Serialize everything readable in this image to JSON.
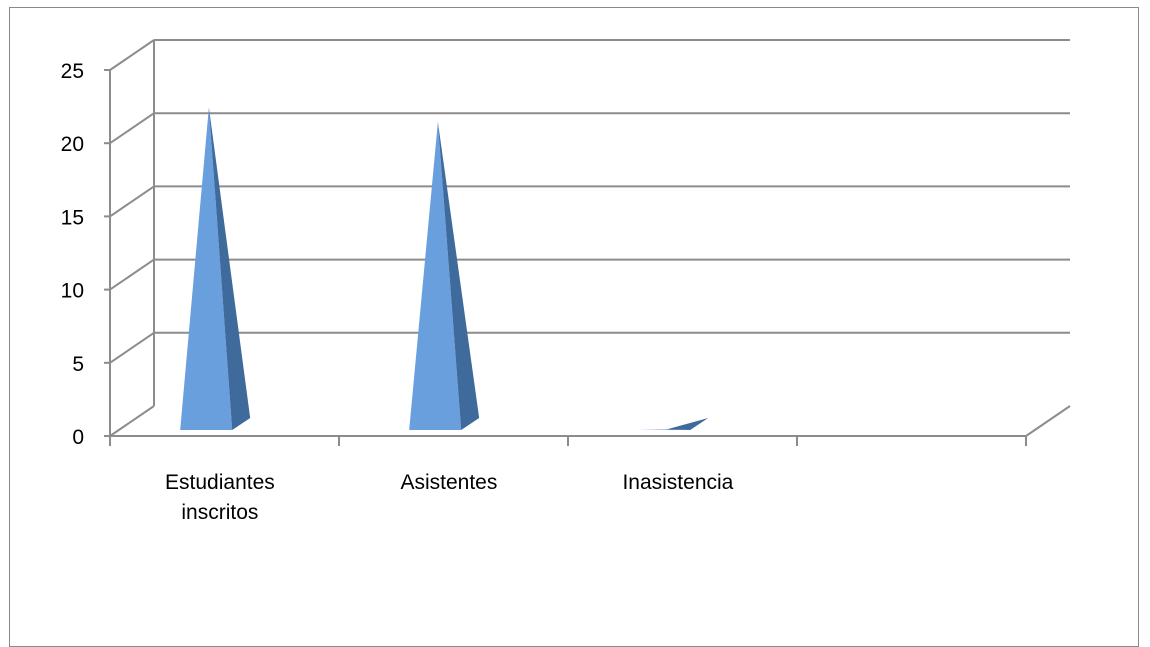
{
  "chart_data": {
    "type": "bar",
    "style": "3d-pyramid",
    "categories": [
      [
        "Estudiantes",
        "inscritos"
      ],
      [
        "Asistentes"
      ],
      [
        "Inasistencia"
      ],
      []
    ],
    "values": [
      23,
      22,
      1,
      null
    ],
    "ylim": [
      0,
      25
    ],
    "yticks": [
      "0",
      "5",
      "10",
      "15",
      "20",
      "25"
    ],
    "grid": true,
    "legend": "none",
    "colors": {
      "front": "#6a9fde",
      "side": "#3f6a9c",
      "grid": "#8c8c8c",
      "axis": "#8c8c8c"
    }
  }
}
